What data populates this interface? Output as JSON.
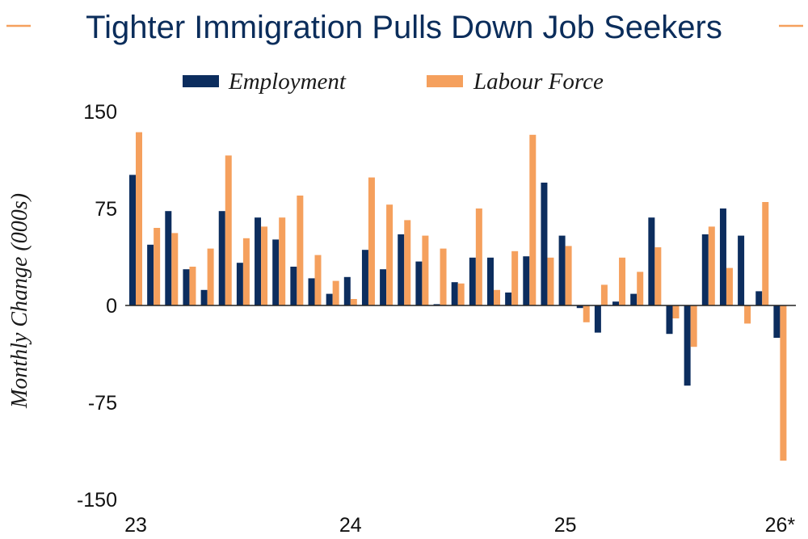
{
  "chart_data": {
    "type": "bar",
    "title": "Tighter Immigration Pulls Down Job Seekers",
    "ylabel": "Monthly Change (000s)",
    "xlabel": "",
    "ylim": [
      -150,
      150
    ],
    "yticks": [
      {
        "value": 150,
        "label": "150"
      },
      {
        "value": 75,
        "label": "75"
      },
      {
        "value": 0,
        "label": "0"
      },
      {
        "value": -75,
        "label": "-75"
      },
      {
        "value": -150,
        "label": "-150"
      }
    ],
    "xticks": [
      {
        "index": 0,
        "label": "23"
      },
      {
        "index": 12,
        "label": "24"
      },
      {
        "index": 24,
        "label": "25"
      },
      {
        "index": 36,
        "label": "26*"
      }
    ],
    "legend_position": "top-center",
    "series": [
      {
        "name": "Employment",
        "color": "#0c2d5e",
        "values": [
          101,
          47,
          73,
          28,
          12,
          73,
          33,
          68,
          51,
          30,
          21,
          9,
          22,
          43,
          28,
          55,
          34,
          1,
          18,
          37,
          37,
          10,
          38,
          95,
          54,
          -2,
          -21,
          3,
          9,
          68,
          -22,
          -62,
          55,
          75,
          54,
          11,
          -25
        ]
      },
      {
        "name": "Labour Force",
        "color": "#f5a05d",
        "values": [
          134,
          60,
          56,
          30,
          44,
          116,
          52,
          61,
          68,
          85,
          39,
          19,
          5,
          99,
          78,
          66,
          54,
          44,
          17,
          75,
          12,
          42,
          132,
          37,
          46,
          -13,
          16,
          37,
          26,
          45,
          -10,
          -32,
          61,
          29,
          -14,
          80,
          -120
        ]
      }
    ]
  }
}
